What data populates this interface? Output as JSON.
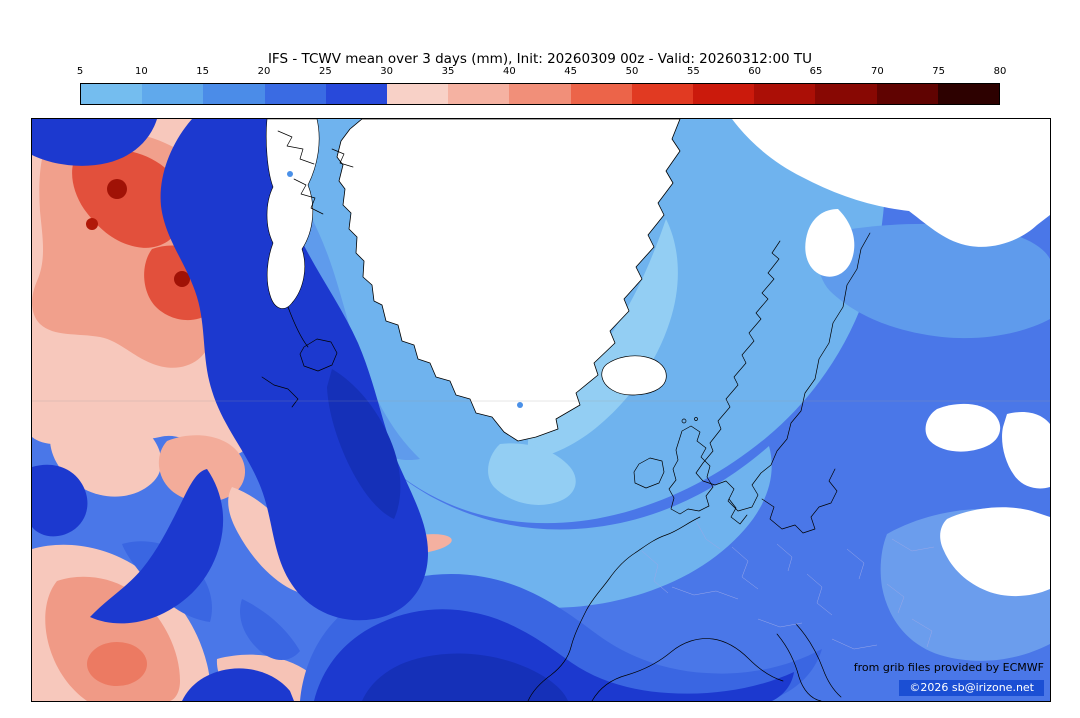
{
  "title": "IFS - TCWV mean over 3 days (mm), Init: 20260309 00z - Valid: 20260312:00 TU",
  "colorbar": {
    "ticks": [
      "5",
      "10",
      "15",
      "20",
      "25",
      "30",
      "35",
      "40",
      "45",
      "50",
      "55",
      "60",
      "65",
      "70",
      "75",
      "80"
    ],
    "colors": [
      "#74bdef",
      "#60a9ec",
      "#4b8ce8",
      "#3a6be3",
      "#2849da",
      "#f8d1c7",
      "#f5b2a2",
      "#f18f79",
      "#ec6449",
      "#e13a22",
      "#cb1a0c",
      "#ab0f06",
      "#880803",
      "#600301",
      "#2d0100"
    ]
  },
  "map": {
    "credit_line1": "from grib files provided by ECMWF",
    "credit_line2": "©2026 sb@irizone.net",
    "palette": {
      "ocean_base": "#4a77e8",
      "ocean_light": "#6fb3ee",
      "ocean_lightest": "#93cef3",
      "moist_navy": "#1c39cf",
      "moist_deep": "#1530b8",
      "dry_pink": "#f7c8bc",
      "dry_salmon": "#f1a08c",
      "dry_red": "#e2503c",
      "dry_dark_red": "#a01206",
      "land_white": "#ffffff"
    }
  }
}
